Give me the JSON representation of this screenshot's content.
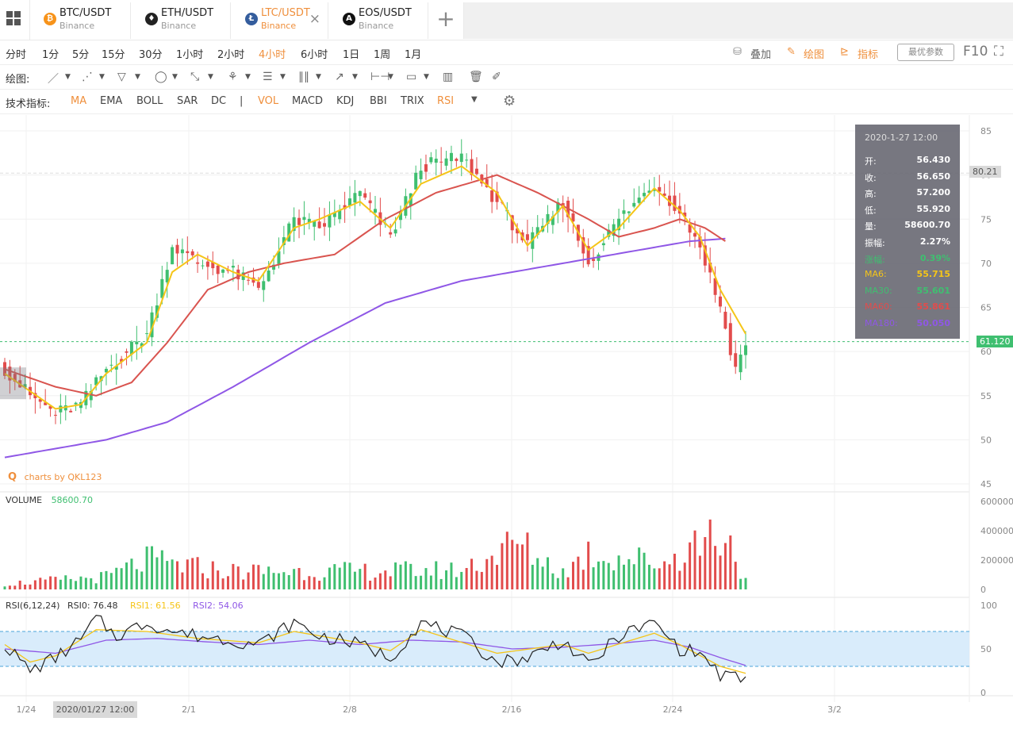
{
  "tabs": [
    {
      "pair": "BTC/USDT",
      "exchange": "Binance",
      "coin": "₿",
      "color": "#f7931a"
    },
    {
      "pair": "ETH/USDT",
      "exchange": "Binance",
      "coin": "♦",
      "color": "#222222"
    },
    {
      "pair": "LTC/USDT",
      "exchange": "Binance",
      "coin": "Ł",
      "color": "#345d9d",
      "active": true
    },
    {
      "pair": "EOS/USDT",
      "exchange": "Binance",
      "coin": "A",
      "color": "#111111"
    }
  ],
  "intervals": [
    "分时",
    "1分",
    "5分",
    "15分",
    "30分",
    "1小时",
    "2小时",
    "4小时",
    "6小时",
    "1日",
    "1周",
    "1月"
  ],
  "active_interval": "4小时",
  "toolbar_right": {
    "overlay": "叠加",
    "draw": "绘图",
    "indicator": "指标",
    "best_params": "最优参数",
    "f10": "F10"
  },
  "draw_label": "绘图:",
  "indicator_label": "技术指标:",
  "indicators": [
    "MA",
    "EMA",
    "BOLL",
    "SAR",
    "DC",
    "|",
    "VOL",
    "MACD",
    "KDJ",
    "BBI",
    "TRIX",
    "RSI"
  ],
  "active_indicators": [
    "MA",
    "VOL",
    "RSI"
  ],
  "tooltip": {
    "time": "2020-1-27 12:00",
    "rows": [
      {
        "k": "开:",
        "v": "56.430",
        "color": "#ffffff"
      },
      {
        "k": "收:",
        "v": "56.650",
        "color": "#ffffff"
      },
      {
        "k": "高:",
        "v": "57.200",
        "color": "#ffffff"
      },
      {
        "k": "低:",
        "v": "55.920",
        "color": "#ffffff"
      },
      {
        "k": "量:",
        "v": "58600.70",
        "color": "#ffffff"
      },
      {
        "k": "振幅:",
        "v": "2.27%",
        "color": "#ffffff"
      },
      {
        "k": "涨幅:",
        "v": "0.39%",
        "color": "#3fbf70"
      },
      {
        "k": "MA6:",
        "v": "55.715",
        "color": "#f5c518"
      },
      {
        "k": "MA30:",
        "v": "55.601",
        "color": "#3fbf70"
      },
      {
        "k": "MA60:",
        "v": "55.861",
        "color": "#e24c4c"
      },
      {
        "k": "MA180:",
        "v": "50.050",
        "color": "#8f57e6"
      }
    ]
  },
  "watermark": "charts by QKL123",
  "volume_label": "VOLUME",
  "volume_value": "58600.70",
  "rsi_legend": {
    "title": "RSI(6,12,24)",
    "rsi0": "RSI0: 76.48",
    "rsi1": "RSI1: 61.56",
    "rsi2": "RSI2: 54.06"
  },
  "price_axis": [
    "85",
    "80",
    "75",
    "70",
    "65",
    "60",
    "55",
    "50",
    "45"
  ],
  "volume_axis": [
    "600000",
    "400000",
    "200000",
    "0"
  ],
  "rsi_axis": [
    "100",
    "50",
    "0"
  ],
  "date_ticks": [
    "1/24",
    "2/1",
    "2/8",
    "2/16",
    "2/24",
    "3/2"
  ],
  "crosshair_time": "2020/01/27 12:00",
  "last_price": "61.120",
  "high_mark": "80.21",
  "colors": {
    "up": "#3fbf70",
    "down": "#e24c4c",
    "ma_short": "#f5c518",
    "ma_mid": "#d9544f",
    "ma_long": "#8f57e6",
    "accent": "#ef8f3c"
  },
  "chart_data": {
    "type": "candlestick",
    "series_keypoints": {
      "close": [
        [
          0,
          58
        ],
        [
          5,
          55
        ],
        [
          10,
          53
        ],
        [
          15,
          54
        ],
        [
          20,
          58
        ],
        [
          28,
          62
        ],
        [
          33,
          72
        ],
        [
          38,
          70
        ],
        [
          45,
          69
        ],
        [
          50,
          67
        ],
        [
          57,
          75
        ],
        [
          62,
          74
        ],
        [
          70,
          78
        ],
        [
          76,
          73
        ],
        [
          82,
          81
        ],
        [
          90,
          82
        ],
        [
          97,
          77
        ],
        [
          103,
          72
        ],
        [
          110,
          77
        ],
        [
          115,
          70
        ],
        [
          121,
          75
        ],
        [
          128,
          79
        ],
        [
          133,
          76
        ],
        [
          137,
          72
        ],
        [
          141,
          65
        ],
        [
          144,
          58
        ],
        [
          146,
          61.12
        ]
      ],
      "ma_short": [
        [
          0,
          57.5
        ],
        [
          5,
          55.5
        ],
        [
          10,
          53.5
        ],
        [
          15,
          54
        ],
        [
          20,
          57.5
        ],
        [
          28,
          61
        ],
        [
          33,
          69
        ],
        [
          38,
          71
        ],
        [
          45,
          69
        ],
        [
          50,
          68
        ],
        [
          57,
          74
        ],
        [
          62,
          75
        ],
        [
          70,
          77
        ],
        [
          76,
          74
        ],
        [
          82,
          79
        ],
        [
          90,
          81
        ],
        [
          97,
          78
        ],
        [
          103,
          72
        ],
        [
          110,
          76.5
        ],
        [
          115,
          71.5
        ],
        [
          121,
          74
        ],
        [
          128,
          78.5
        ],
        [
          133,
          76
        ],
        [
          137,
          73
        ],
        [
          141,
          67
        ],
        [
          146,
          62
        ]
      ],
      "ma_mid": [
        [
          0,
          58
        ],
        [
          10,
          56
        ],
        [
          18,
          55
        ],
        [
          25,
          56.5
        ],
        [
          32,
          61
        ],
        [
          40,
          67
        ],
        [
          48,
          69
        ],
        [
          55,
          70
        ],
        [
          65,
          71
        ],
        [
          75,
          75
        ],
        [
          85,
          78
        ],
        [
          97,
          80
        ],
        [
          105,
          78
        ],
        [
          115,
          75
        ],
        [
          121,
          73
        ],
        [
          128,
          74
        ],
        [
          133,
          75
        ],
        [
          138,
          74
        ],
        [
          142,
          72.5
        ]
      ],
      "ma_long": [
        [
          0,
          48
        ],
        [
          20,
          50
        ],
        [
          32,
          52
        ],
        [
          45,
          56
        ],
        [
          60,
          61
        ],
        [
          75,
          65.5
        ],
        [
          90,
          68
        ],
        [
          105,
          69.5
        ],
        [
          120,
          71
        ],
        [
          135,
          72.5
        ],
        [
          142,
          72.8
        ]
      ],
      "volume": [
        [
          0,
          40000
        ],
        [
          20,
          90000
        ],
        [
          28,
          210000
        ],
        [
          35,
          170000
        ],
        [
          45,
          130000
        ],
        [
          60,
          130000
        ],
        [
          70,
          130000
        ],
        [
          90,
          140000
        ],
        [
          101,
          330000
        ],
        [
          110,
          120000
        ],
        [
          115,
          260000
        ],
        [
          130,
          190000
        ],
        [
          140,
          420000
        ],
        [
          143,
          340000
        ],
        [
          146,
          58600
        ]
      ],
      "rsi0": [
        [
          0,
          55
        ],
        [
          5,
          25
        ],
        [
          10,
          40
        ],
        [
          15,
          60
        ],
        [
          18,
          85
        ],
        [
          22,
          65
        ],
        [
          28,
          80
        ],
        [
          33,
          70
        ],
        [
          38,
          65
        ],
        [
          45,
          60
        ],
        [
          50,
          55
        ],
        [
          57,
          80
        ],
        [
          62,
          65
        ],
        [
          70,
          55
        ],
        [
          76,
          40
        ],
        [
          82,
          80
        ],
        [
          90,
          65
        ],
        [
          97,
          35
        ],
        [
          103,
          40
        ],
        [
          110,
          60
        ],
        [
          115,
          30
        ],
        [
          121,
          65
        ],
        [
          128,
          80
        ],
        [
          133,
          50
        ],
        [
          137,
          45
        ],
        [
          141,
          20
        ],
        [
          146,
          15
        ]
      ],
      "rsi1": [
        [
          0,
          55
        ],
        [
          5,
          35
        ],
        [
          10,
          42
        ],
        [
          18,
          72
        ],
        [
          28,
          70
        ],
        [
          38,
          62
        ],
        [
          50,
          57
        ],
        [
          57,
          70
        ],
        [
          70,
          57
        ],
        [
          76,
          48
        ],
        [
          82,
          72
        ],
        [
          97,
          45
        ],
        [
          110,
          55
        ],
        [
          115,
          45
        ],
        [
          128,
          68
        ],
        [
          133,
          55
        ],
        [
          141,
          30
        ],
        [
          146,
          22
        ]
      ],
      "rsi2": [
        [
          0,
          50
        ],
        [
          10,
          45
        ],
        [
          20,
          60
        ],
        [
          30,
          62
        ],
        [
          40,
          58
        ],
        [
          50,
          55
        ],
        [
          60,
          60
        ],
        [
          70,
          55
        ],
        [
          80,
          60
        ],
        [
          90,
          58
        ],
        [
          100,
          50
        ],
        [
          110,
          52
        ],
        [
          120,
          56
        ],
        [
          128,
          60
        ],
        [
          135,
          52
        ],
        [
          141,
          40
        ],
        [
          146,
          31
        ]
      ]
    },
    "bars": 147,
    "ylim_price": [
      45,
      85
    ],
    "ylim_volume": [
      0,
      600000
    ],
    "ylim_rsi": [
      0,
      100
    ],
    "rsi_band": [
      30,
      70
    ]
  }
}
